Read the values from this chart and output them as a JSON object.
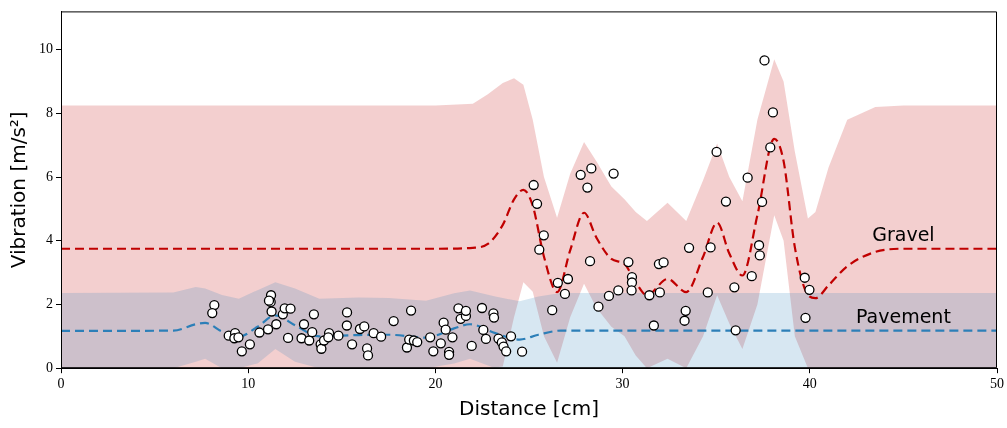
{
  "chart_data": {
    "type": "line",
    "xlabel": "Distance [cm]",
    "ylabel": "Vibration [m/s²]",
    "xlim": [
      0,
      50
    ],
    "ylim": [
      0,
      11.2
    ],
    "xticks": [
      0,
      10,
      20,
      30,
      40,
      50
    ],
    "yticks": [
      0,
      2,
      4,
      6,
      8,
      10
    ],
    "grid": false,
    "series": [
      {
        "name": "Gravel",
        "color": "#c00000",
        "line_style": "dashed",
        "marker": "none",
        "x": [
          0,
          20,
          22,
          22.8,
          23.6,
          24.2,
          24.7,
          25.2,
          25.8,
          26.5,
          27.2,
          27.94,
          28.6,
          29.4,
          30.1,
          30.7,
          31.3,
          32.4,
          33.4,
          34.3,
          35.05,
          35.7,
          36.4,
          37.2,
          38.1,
          38.6,
          39.2,
          39.9,
          40.3,
          41,
          42,
          43.5,
          45,
          50
        ],
        "values": [
          3.75,
          3.75,
          3.78,
          3.9,
          4.5,
          5.3,
          5.6,
          5.1,
          3.5,
          2.39,
          3.7,
          4.88,
          4.1,
          3.43,
          3.27,
          2.7,
          2.29,
          2.8,
          2.39,
          3.5,
          4.57,
          3.6,
          2.91,
          4.8,
          7.2,
          6.5,
          3.8,
          2.3,
          2.2,
          2.6,
          3.2,
          3.65,
          3.75,
          3.75
        ],
        "upper": [
          8.25,
          8.25,
          8.3,
          8.6,
          8.95,
          9.1,
          8.9,
          7.8,
          6.0,
          4.72,
          6.1,
          7.1,
          6.5,
          5.7,
          5.3,
          4.9,
          4.62,
          5.19,
          4.62,
          5.9,
          7.05,
          6.0,
          5.24,
          7.8,
          9.7,
          9.0,
          6.8,
          4.7,
          4.9,
          6.3,
          7.8,
          8.2,
          8.25,
          8.25
        ],
        "lower": [
          0,
          0,
          0,
          0,
          0.05,
          1.6,
          2.7,
          2.4,
          1.0,
          0.17,
          1.6,
          2.65,
          1.9,
          1.3,
          1.0,
          0.4,
          0,
          0.3,
          0,
          1.0,
          2.29,
          1.4,
          0.6,
          2.0,
          4.8,
          4.0,
          1.0,
          0,
          0,
          0,
          0,
          0,
          0,
          0
        ]
      },
      {
        "name": "Pavement",
        "color": "#2c7fb8",
        "line_style": "dashed",
        "marker": "none",
        "x": [
          0,
          6,
          7.2,
          7.7,
          8.6,
          9.5,
          10.5,
          11.45,
          12.5,
          13.8,
          15.9,
          17.5,
          19.5,
          21,
          21.85,
          23.2,
          24.5,
          25.5,
          26.7,
          50
        ],
        "values": [
          1.17,
          1.18,
          1.38,
          1.42,
          1.15,
          0.99,
          1.3,
          1.66,
          1.35,
          1.0,
          1.04,
          1.05,
          0.96,
          1.25,
          1.38,
          1.1,
          0.9,
          1.05,
          1.18,
          1.18
        ],
        "upper": [
          2.36,
          2.38,
          2.55,
          2.5,
          2.3,
          2.18,
          2.45,
          2.7,
          2.5,
          2.18,
          2.22,
          2.2,
          2.12,
          2.35,
          2.44,
          2.25,
          2.1,
          2.25,
          2.36,
          2.36
        ],
        "lower": [
          0,
          0,
          0.2,
          0.3,
          0,
          0,
          0.15,
          0.6,
          0.2,
          0,
          0,
          0,
          0,
          0.15,
          0.3,
          0,
          0,
          0,
          0,
          0
        ]
      },
      {
        "type": "scatter",
        "color": "#ffffff",
        "marker": "circle",
        "x": [
          8.19,
          8.08,
          8.96,
          9.3,
          9.26,
          9.48,
          9.66,
          10.09,
          10.6,
          11.06,
          11.22,
          11.2,
          11.11,
          11.25,
          11.5,
          11.85,
          11.95,
          12.26,
          12.13,
          12.85,
          12.98,
          13.26,
          13.42,
          13.51,
          13.87,
          13.91,
          14.05,
          14.32,
          14.28,
          14.82,
          15.28,
          15.27,
          15.55,
          15.97,
          16.2,
          16.35,
          16.4,
          16.7,
          17.1,
          17.77,
          18.48,
          18.6,
          18.7,
          18.85,
          19.03,
          19.72,
          19.89,
          20.29,
          20.44,
          20.55,
          20.73,
          20.73,
          20.91,
          21.23,
          21.35,
          21.63,
          21.63,
          21.94,
          22.49,
          22.56,
          22.7,
          23.1,
          23.13,
          23.37,
          23.55,
          23.64,
          23.78,
          24.04,
          24.63,
          25.25,
          25.43,
          25.79,
          25.55,
          26.24,
          26.54,
          27.08,
          26.92,
          27.76,
          28.33,
          28.12,
          28.26,
          28.71,
          29.27,
          29.77,
          29.52,
          30.31,
          30.5,
          30.5,
          30.48,
          31.43,
          31.67,
          31.99,
          31.94,
          32.19,
          33.37,
          33.31,
          33.55,
          34.55,
          34.7,
          35.02,
          35.52,
          35.97,
          36.04,
          36.68,
          36.9,
          37.29,
          37.33,
          37.45,
          37.58,
          38.03,
          37.89,
          39.73,
          39.98,
          39.77
        ],
        "values": [
          1.98,
          1.73,
          1.02,
          1.1,
          0.94,
          0.97,
          0.53,
          0.75,
          1.12,
          1.22,
          2.29,
          2.08,
          2.12,
          1.78,
          1.38,
          1.69,
          1.88,
          1.87,
          0.95,
          0.94,
          1.38,
          0.87,
          1.13,
          1.69,
          0.75,
          0.61,
          0.87,
          1.1,
          0.97,
          1.02,
          1.75,
          1.34,
          0.75,
          1.23,
          1.31,
          0.62,
          0.4,
          1.1,
          0.99,
          1.48,
          0.65,
          0.9,
          1.81,
          0.87,
          0.82,
          0.97,
          0.53,
          0.78,
          1.43,
          1.21,
          0.51,
          0.42,
          0.97,
          1.88,
          1.55,
          1.64,
          1.8,
          0.7,
          1.89,
          1.2,
          0.92,
          1.72,
          1.59,
          0.93,
          0.81,
          0.68,
          0.53,
          1.0,
          0.52,
          5.75,
          5.16,
          4.17,
          3.72,
          1.82,
          2.68,
          2.8,
          2.33,
          6.07,
          6.27,
          5.67,
          3.36,
          1.93,
          2.27,
          2.44,
          6.11,
          3.33,
          2.86,
          2.69,
          2.44,
          2.29,
          1.34,
          2.38,
          3.27,
          3.32,
          1.8,
          1.49,
          3.78,
          2.38,
          3.79,
          6.79,
          5.23,
          2.54,
          1.19,
          5.98,
          2.89,
          3.86,
          3.54,
          5.22,
          9.66,
          8.03,
          6.93,
          2.84,
          2.46,
          1.58
        ]
      }
    ]
  }
}
